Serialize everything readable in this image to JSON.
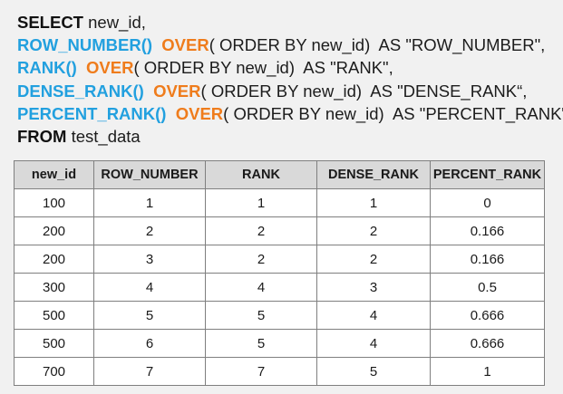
{
  "sql": {
    "line1": {
      "kw": "SELECT",
      "rest": " new_id,"
    },
    "line2": {
      "fn": "ROW_NUMBER()",
      "over": "OVER",
      "rest": "( ORDER BY new_id)  AS \"ROW_NUMBER\","
    },
    "line3": {
      "fn": "RANK()",
      "over": "OVER",
      "rest": "( ORDER BY new_id)  AS \"RANK\","
    },
    "line4": {
      "fn": "DENSE_RANK()",
      "over": "OVER",
      "rest": "( ORDER BY new_id)  AS \"DENSE_RANK“,"
    },
    "line5": {
      "fn": "PERCENT_RANK()",
      "over": "OVER",
      "rest": "( ORDER BY new_id)  AS \"PERCENT_RANK\""
    },
    "line6": {
      "kw": "FROM",
      "rest": " test_data"
    }
  },
  "colors": {
    "function_blue": "#22a0df",
    "over_orange": "#ef7c1c",
    "header_bg": "#d9d9d9",
    "background": "#f1f1f1"
  },
  "table": {
    "headers": [
      "new_id",
      "ROW_NUMBER",
      "RANK",
      "DENSE_RANK",
      "PERCENT_RANK"
    ],
    "rows": [
      [
        "100",
        "1",
        "1",
        "1",
        "0"
      ],
      [
        "200",
        "2",
        "2",
        "2",
        "0.166"
      ],
      [
        "200",
        "3",
        "2",
        "2",
        "0.166"
      ],
      [
        "300",
        "4",
        "4",
        "3",
        "0.5"
      ],
      [
        "500",
        "5",
        "5",
        "4",
        "0.666"
      ],
      [
        "500",
        "6",
        "5",
        "4",
        "0.666"
      ],
      [
        "700",
        "7",
        "7",
        "5",
        "1"
      ]
    ]
  }
}
